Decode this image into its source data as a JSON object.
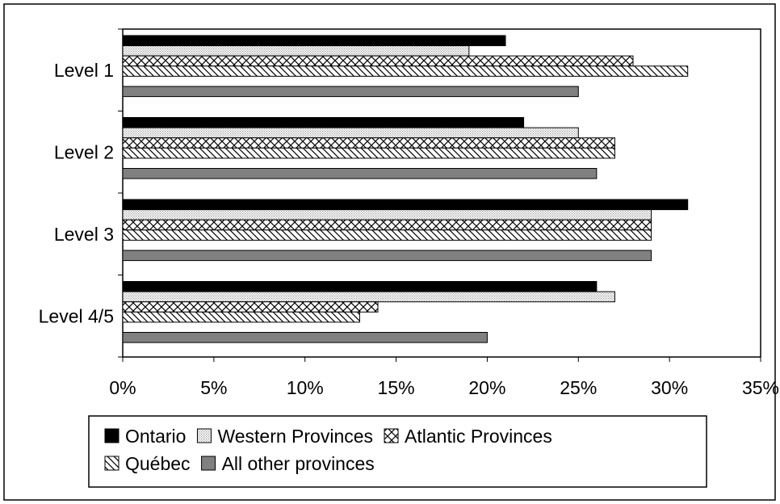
{
  "chart_data": {
    "type": "bar",
    "orientation": "horizontal",
    "title": "",
    "xlabel": "",
    "ylabel": "",
    "categories": [
      "Level 1",
      "Level 2",
      "Level 3",
      "Level 4/5"
    ],
    "series": [
      {
        "name": "Ontario",
        "values": [
          21,
          22,
          31,
          26
        ],
        "pattern": "solid",
        "color": "#000000"
      },
      {
        "name": "Western Provinces",
        "values": [
          19,
          25,
          29,
          27
        ],
        "pattern": "dots",
        "color": "#d0d0d0"
      },
      {
        "name": "Atlantic Provinces",
        "values": [
          28,
          27,
          29,
          14
        ],
        "pattern": "crosshatch",
        "color": "#000000"
      },
      {
        "name": "Québec",
        "values": [
          31,
          27,
          29,
          13
        ],
        "pattern": "diagonal",
        "color": "#000000"
      },
      {
        "name": "All other provinces",
        "values": [
          25,
          26,
          29,
          20
        ],
        "pattern": "solid",
        "color": "#808080"
      }
    ],
    "xlim": [
      0,
      35
    ],
    "x_ticks": [
      "0%",
      "5%",
      "10%",
      "15%",
      "20%",
      "25%",
      "30%",
      "35%"
    ],
    "x_tick_values": [
      0,
      5,
      10,
      15,
      20,
      25,
      30,
      35
    ],
    "grid": false,
    "legend_position": "bottom"
  }
}
